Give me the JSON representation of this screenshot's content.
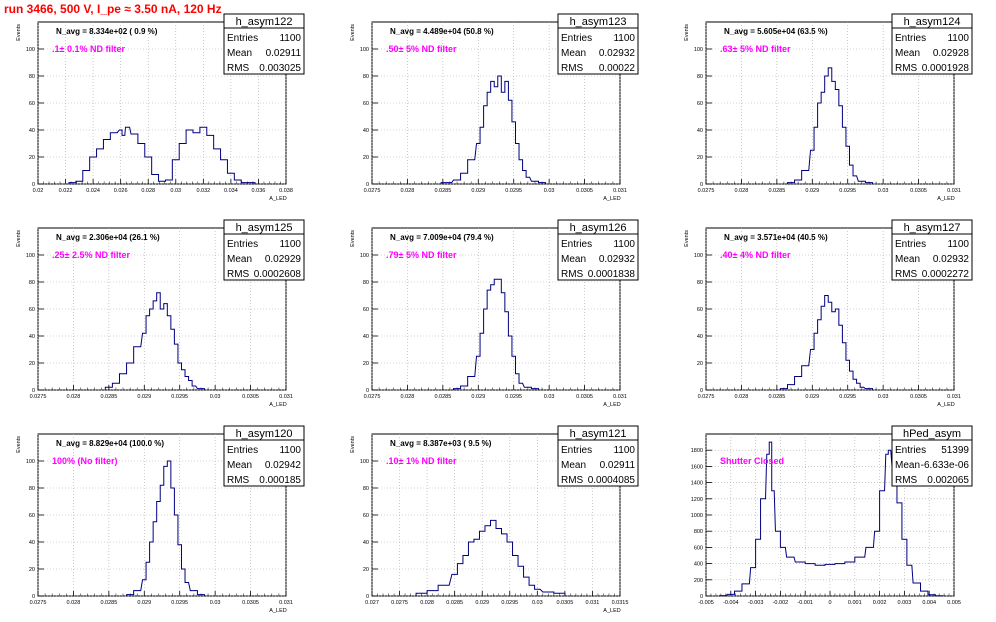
{
  "page_title": "run 3466,   500 V, I_pe ≈ 3.50 nA, 120 Hz",
  "chart_data": [
    {
      "type": "bar",
      "name": "h_asym122",
      "stats": {
        "Entries": "1100",
        "Mean": "0.02911",
        "RMS": "0.003025"
      },
      "navg": "N_avg = 8.334e+02 ( 0.9 %)",
      "filter": ".1± 0.1% ND filter",
      "xlabel": "A_LED",
      "ylabel": "Events",
      "xlim": [
        0.02,
        0.038
      ],
      "ylim": [
        0,
        120
      ],
      "xticks": [
        "0.02",
        "0.022",
        "0.024",
        "0.026",
        "0.028",
        "0.03",
        "0.032",
        "0.034",
        "0.036",
        "0.038"
      ],
      "yticks": [
        "0",
        "20",
        "40",
        "60",
        "80",
        "100"
      ],
      "hist": [
        [
          0.0225,
          1
        ],
        [
          0.023,
          2
        ],
        [
          0.0235,
          10
        ],
        [
          0.024,
          20
        ],
        [
          0.0245,
          26
        ],
        [
          0.025,
          33
        ],
        [
          0.0255,
          38
        ],
        [
          0.026,
          40
        ],
        [
          0.0262,
          36
        ],
        [
          0.0265,
          42
        ],
        [
          0.027,
          37
        ],
        [
          0.0275,
          30
        ],
        [
          0.028,
          20
        ],
        [
          0.0285,
          7
        ],
        [
          0.029,
          2
        ],
        [
          0.0295,
          3
        ],
        [
          0.03,
          18
        ],
        [
          0.0305,
          30
        ],
        [
          0.031,
          40
        ],
        [
          0.0315,
          38
        ],
        [
          0.032,
          42
        ],
        [
          0.0325,
          36
        ],
        [
          0.033,
          26
        ],
        [
          0.0335,
          18
        ],
        [
          0.034,
          8
        ],
        [
          0.0345,
          3
        ],
        [
          0.035,
          1
        ],
        [
          0.0355,
          1
        ]
      ]
    },
    {
      "type": "bar",
      "name": "h_asym123",
      "stats": {
        "Entries": "1100",
        "Mean": "0.02932",
        "RMS": "0.00022"
      },
      "navg": "N_avg = 4.489e+04 (50.8 %)",
      "filter": ".50± 5% ND filter",
      "xlabel": "A_LED",
      "ylabel": "Events",
      "xlim": [
        0.0275,
        0.031
      ],
      "ylim": [
        0,
        120
      ],
      "xticks": [
        "0.0275",
        "0.028",
        "0.0285",
        "0.029",
        "0.0295",
        "0.03",
        "0.0305",
        "0.031"
      ],
      "yticks": [
        "0",
        "20",
        "40",
        "60",
        "80",
        "100"
      ],
      "hist": [
        [
          0.02855,
          1
        ],
        [
          0.0287,
          3
        ],
        [
          0.0288,
          8
        ],
        [
          0.0289,
          18
        ],
        [
          0.029,
          30
        ],
        [
          0.02905,
          42
        ],
        [
          0.0291,
          58
        ],
        [
          0.02915,
          68
        ],
        [
          0.0292,
          76
        ],
        [
          0.02925,
          72
        ],
        [
          0.0293,
          80
        ],
        [
          0.02935,
          68
        ],
        [
          0.0294,
          76
        ],
        [
          0.02945,
          62
        ],
        [
          0.0295,
          46
        ],
        [
          0.02955,
          30
        ],
        [
          0.0296,
          18
        ],
        [
          0.02965,
          10
        ],
        [
          0.0297,
          5
        ],
        [
          0.0298,
          2
        ],
        [
          0.0299,
          1
        ]
      ]
    },
    {
      "type": "bar",
      "name": "h_asym124",
      "stats": {
        "Entries": "1100",
        "Mean": "0.02928",
        "RMS": "0.0001928"
      },
      "navg": "N_avg = 5.605e+04 (63.5 %)",
      "filter": ".63± 5% ND filter",
      "xlabel": "A_LED",
      "ylabel": "Events",
      "xlim": [
        0.0275,
        0.031
      ],
      "ylim": [
        0,
        120
      ],
      "xticks": [
        "0.0275",
        "0.028",
        "0.0285",
        "0.029",
        "0.0295",
        "0.03",
        "0.0305",
        "0.031"
      ],
      "yticks": [
        "0",
        "20",
        "40",
        "60",
        "80",
        "100"
      ],
      "hist": [
        [
          0.0287,
          1
        ],
        [
          0.0288,
          3
        ],
        [
          0.0289,
          10
        ],
        [
          0.029,
          25
        ],
        [
          0.02905,
          42
        ],
        [
          0.0291,
          60
        ],
        [
          0.02915,
          68
        ],
        [
          0.0292,
          80
        ],
        [
          0.02925,
          86
        ],
        [
          0.0293,
          76
        ],
        [
          0.02935,
          70
        ],
        [
          0.0294,
          58
        ],
        [
          0.02945,
          42
        ],
        [
          0.0295,
          28
        ],
        [
          0.02955,
          14
        ],
        [
          0.0296,
          6
        ],
        [
          0.0297,
          2
        ],
        [
          0.0298,
          1
        ]
      ]
    },
    {
      "type": "bar",
      "name": "h_asym125",
      "stats": {
        "Entries": "1100",
        "Mean": "0.02929",
        "RMS": "0.0002608"
      },
      "navg": "N_avg = 2.306e+04 (26.1 %)",
      "filter": ".25± 2.5% ND filter",
      "xlabel": "A_LED",
      "ylabel": "Events",
      "xlim": [
        0.0275,
        0.031
      ],
      "ylim": [
        0,
        120
      ],
      "xticks": [
        "0.0275",
        "0.028",
        "0.0285",
        "0.029",
        "0.0295",
        "0.03",
        "0.0305",
        "0.031"
      ],
      "yticks": [
        "0",
        "20",
        "40",
        "60",
        "80",
        "100"
      ],
      "hist": [
        [
          0.0285,
          2
        ],
        [
          0.0286,
          5
        ],
        [
          0.0287,
          12
        ],
        [
          0.0288,
          20
        ],
        [
          0.0289,
          32
        ],
        [
          0.029,
          42
        ],
        [
          0.02905,
          55
        ],
        [
          0.0291,
          60
        ],
        [
          0.02915,
          66
        ],
        [
          0.0292,
          72
        ],
        [
          0.02925,
          60
        ],
        [
          0.0293,
          64
        ],
        [
          0.02935,
          55
        ],
        [
          0.0294,
          45
        ],
        [
          0.02945,
          34
        ],
        [
          0.0295,
          20
        ],
        [
          0.02955,
          15
        ],
        [
          0.0296,
          10
        ],
        [
          0.02965,
          7
        ],
        [
          0.0297,
          3
        ],
        [
          0.0298,
          1
        ]
      ]
    },
    {
      "type": "bar",
      "name": "h_asym126",
      "stats": {
        "Entries": "1100",
        "Mean": "0.02932",
        "RMS": "0.0001838"
      },
      "navg": "N_avg = 7.009e+04 (79.4 %)",
      "filter": ".79± 5% ND filter",
      "xlabel": "A_LED",
      "ylabel": "Events",
      "xlim": [
        0.0275,
        0.031
      ],
      "ylim": [
        0,
        120
      ],
      "xticks": [
        "0.0275",
        "0.028",
        "0.0285",
        "0.029",
        "0.0295",
        "0.03",
        "0.0305",
        "0.031"
      ],
      "yticks": [
        "0",
        "20",
        "40",
        "60",
        "80",
        "100"
      ],
      "hist": [
        [
          0.0287,
          1
        ],
        [
          0.0288,
          3
        ],
        [
          0.0289,
          10
        ],
        [
          0.029,
          25
        ],
        [
          0.02905,
          42
        ],
        [
          0.0291,
          60
        ],
        [
          0.02915,
          74
        ],
        [
          0.0292,
          78
        ],
        [
          0.02925,
          82
        ],
        [
          0.0293,
          82
        ],
        [
          0.02935,
          72
        ],
        [
          0.0294,
          58
        ],
        [
          0.02945,
          40
        ],
        [
          0.0295,
          25
        ],
        [
          0.02955,
          12
        ],
        [
          0.0296,
          5
        ],
        [
          0.0297,
          2
        ],
        [
          0.0298,
          1
        ]
      ]
    },
    {
      "type": "bar",
      "name": "h_asym127",
      "stats": {
        "Entries": "1100",
        "Mean": "0.02932",
        "RMS": "0.0002272"
      },
      "navg": "N_avg = 3.571e+04 (40.5 %)",
      "filter": ".40± 4% ND filter",
      "xlabel": "A_LED",
      "ylabel": "Events",
      "xlim": [
        0.0275,
        0.031
      ],
      "ylim": [
        0,
        120
      ],
      "xticks": [
        "0.0275",
        "0.028",
        "0.0285",
        "0.029",
        "0.0295",
        "0.03",
        "0.0305",
        "0.031"
      ],
      "yticks": [
        "0",
        "20",
        "40",
        "60",
        "80",
        "100"
      ],
      "hist": [
        [
          0.0286,
          1
        ],
        [
          0.0287,
          4
        ],
        [
          0.0288,
          10
        ],
        [
          0.0289,
          18
        ],
        [
          0.029,
          30
        ],
        [
          0.02905,
          42
        ],
        [
          0.0291,
          52
        ],
        [
          0.02915,
          62
        ],
        [
          0.0292,
          70
        ],
        [
          0.02925,
          65
        ],
        [
          0.0293,
          58
        ],
        [
          0.02935,
          60
        ],
        [
          0.0294,
          48
        ],
        [
          0.02945,
          35
        ],
        [
          0.0295,
          22
        ],
        [
          0.02955,
          14
        ],
        [
          0.0296,
          8
        ],
        [
          0.02965,
          5
        ],
        [
          0.0297,
          2
        ],
        [
          0.0298,
          1
        ]
      ]
    },
    {
      "type": "bar",
      "name": "h_asym120",
      "stats": {
        "Entries": "1100",
        "Mean": "0.02942",
        "RMS": "0.000185"
      },
      "navg": "N_avg = 8.829e+04 (100.0 %)",
      "filter": "100% (No filter)",
      "xlabel": "A_LED",
      "ylabel": "Events",
      "xlim": [
        0.0275,
        0.031
      ],
      "ylim": [
        0,
        120
      ],
      "xticks": [
        "0.0275",
        "0.028",
        "0.0285",
        "0.029",
        "0.0295",
        "0.03",
        "0.0305",
        "0.031"
      ],
      "yticks": [
        "0",
        "20",
        "40",
        "60",
        "80",
        "100"
      ],
      "hist": [
        [
          0.0288,
          1
        ],
        [
          0.0289,
          4
        ],
        [
          0.029,
          12
        ],
        [
          0.02905,
          25
        ],
        [
          0.0291,
          40
        ],
        [
          0.02915,
          55
        ],
        [
          0.0292,
          70
        ],
        [
          0.02925,
          82
        ],
        [
          0.0293,
          96
        ],
        [
          0.02935,
          100
        ],
        [
          0.0294,
          80
        ],
        [
          0.02945,
          60
        ],
        [
          0.0295,
          38
        ],
        [
          0.02955,
          20
        ],
        [
          0.0296,
          10
        ],
        [
          0.0297,
          4
        ],
        [
          0.0298,
          1
        ]
      ]
    },
    {
      "type": "bar",
      "name": "h_asym121",
      "stats": {
        "Entries": "1100",
        "Mean": "0.02911",
        "RMS": "0.0004085"
      },
      "navg": "N_avg = 8.387e+03 ( 9.5 %)",
      "filter": ".10± 1% ND filter",
      "xlabel": "A_LED",
      "ylabel": "Events",
      "xlim": [
        0.027,
        0.0315
      ],
      "ylim": [
        0,
        120
      ],
      "xticks": [
        "0.027",
        "0.0275",
        "0.028",
        "0.0285",
        "0.029",
        "0.0295",
        "0.03",
        "0.0305",
        "0.031",
        "0.0315"
      ],
      "yticks": [
        "0",
        "20",
        "40",
        "60",
        "80",
        "100"
      ],
      "hist": [
        [
          0.0279,
          2
        ],
        [
          0.0281,
          4
        ],
        [
          0.0283,
          8
        ],
        [
          0.0285,
          16
        ],
        [
          0.0286,
          24
        ],
        [
          0.0287,
          30
        ],
        [
          0.0288,
          40
        ],
        [
          0.0289,
          42
        ],
        [
          0.029,
          48
        ],
        [
          0.0291,
          52
        ],
        [
          0.0292,
          56
        ],
        [
          0.0293,
          50
        ],
        [
          0.0294,
          46
        ],
        [
          0.0295,
          40
        ],
        [
          0.0296,
          30
        ],
        [
          0.0297,
          22
        ],
        [
          0.0298,
          14
        ],
        [
          0.0299,
          8
        ],
        [
          0.03,
          5
        ],
        [
          0.0302,
          3
        ],
        [
          0.0304,
          2
        ]
      ]
    },
    {
      "type": "bar",
      "name": "hPed_asym",
      "stats": {
        "Entries": "51399",
        "Mean": "-6.633e-06",
        "RMS": "0.002065"
      },
      "navg": "",
      "filter": "Shutter Closed",
      "xlabel": "",
      "ylabel": "",
      "xlim": [
        -0.005,
        0.005
      ],
      "ylim": [
        0,
        2000
      ],
      "xticks": [
        "-0.005",
        "-0.004",
        "-0.003",
        "-0.002",
        "-0.001",
        "0",
        "0.001",
        "0.002",
        "0.003",
        "0.004",
        "0.005"
      ],
      "yticks": [
        "0",
        "200",
        "400",
        "600",
        "800",
        "1000",
        "1200",
        "1400",
        "1600",
        "1800"
      ],
      "hist": [
        [
          -0.0043,
          5
        ],
        [
          -0.004,
          20
        ],
        [
          -0.0037,
          60
        ],
        [
          -0.0034,
          150
        ],
        [
          -0.0031,
          350
        ],
        [
          -0.0029,
          700
        ],
        [
          -0.0027,
          1200
        ],
        [
          -0.0025,
          1750
        ],
        [
          -0.0024,
          1900
        ],
        [
          -0.0023,
          1300
        ],
        [
          -0.0021,
          800
        ],
        [
          -0.0019,
          600
        ],
        [
          -0.0016,
          480
        ],
        [
          -0.0012,
          420
        ],
        [
          -0.0008,
          400
        ],
        [
          -0.0004,
          380
        ],
        [
          0,
          390
        ],
        [
          0.0004,
          400
        ],
        [
          0.0008,
          420
        ],
        [
          0.0012,
          480
        ],
        [
          0.0016,
          600
        ],
        [
          0.0019,
          800
        ],
        [
          0.0021,
          1300
        ],
        [
          0.0023,
          1750
        ],
        [
          0.0024,
          1800
        ],
        [
          0.0026,
          1600
        ],
        [
          0.0028,
          1150
        ],
        [
          0.003,
          700
        ],
        [
          0.0032,
          380
        ],
        [
          0.0035,
          160
        ],
        [
          0.0038,
          60
        ],
        [
          0.0041,
          15
        ],
        [
          0.0044,
          3
        ]
      ]
    }
  ]
}
